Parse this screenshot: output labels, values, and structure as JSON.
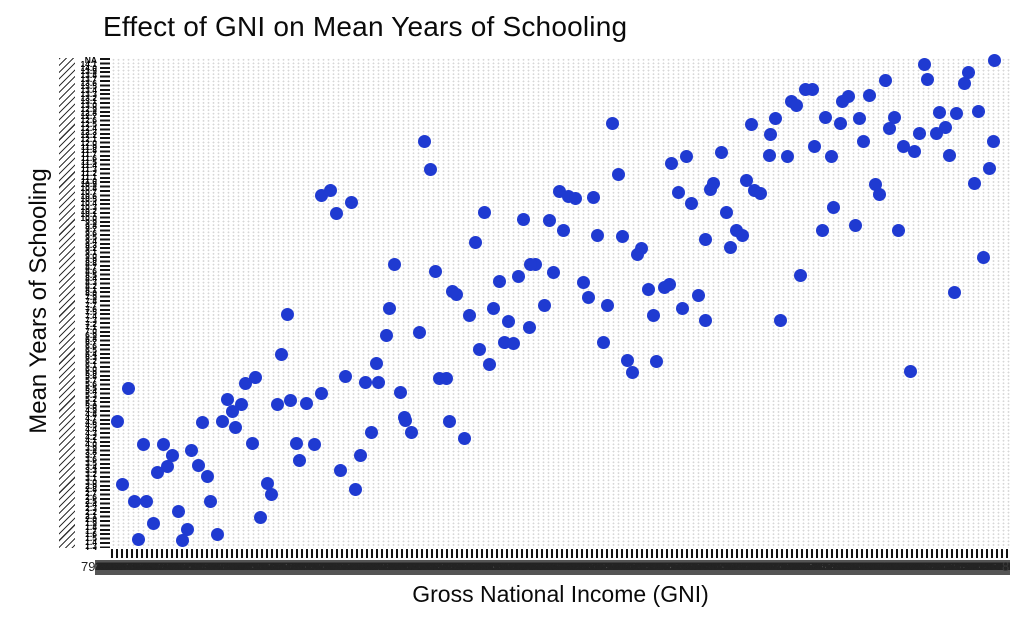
{
  "title": "Effect of GNI on Mean Years of Schooling",
  "x_axis": {
    "label": "Gross National Income (GNI)",
    "left_fragment": "79",
    "right_fragment": "8",
    "overlap_band_spec": {
      "numbers": 260,
      "seed": 7,
      "min": 790,
      "max": 98000
    }
  },
  "y_axis": {
    "label": "Mean Years of Schooling",
    "top_label": "NA",
    "overlap_labels_spec": {
      "first": "NA",
      "from": 14.1,
      "to": 1.2,
      "step": 0.1
    }
  },
  "colors": {
    "marker": "#1f3ad1",
    "grid_dot": "#d7d7d7",
    "tick": "#141414",
    "label_band": "#555555",
    "text": "#0a0a0a"
  },
  "chart_data": {
    "type": "scatter",
    "title": "Effect of GNI on Mean Years of Schooling",
    "xlabel": "Gross National Income (GNI)",
    "ylabel": "Mean Years of Schooling",
    "axes_note": "Both axes are categorical with hundreds of overlapping, illegible tick labels; the only legible y tick label is 'NA' at the top and the x labels start near '79'. Points below are fractions of the plot area (x: 0=left to 1=right, y: 0=bottom to 1=top).",
    "legend": null,
    "grid": "fine dotted",
    "points_frac": [
      [
        0.234,
        0.719
      ],
      [
        0.244,
        0.729
      ],
      [
        0.267,
        0.706
      ],
      [
        0.251,
        0.682
      ],
      [
        0.315,
        0.579
      ],
      [
        0.558,
        0.866
      ],
      [
        0.349,
        0.83
      ],
      [
        0.355,
        0.773
      ],
      [
        0.565,
        0.763
      ],
      [
        0.624,
        0.785
      ],
      [
        0.64,
        0.798
      ],
      [
        0.499,
        0.727
      ],
      [
        0.509,
        0.717
      ],
      [
        0.517,
        0.713
      ],
      [
        0.537,
        0.715
      ],
      [
        0.631,
        0.725
      ],
      [
        0.646,
        0.704
      ],
      [
        0.661,
        0.63
      ],
      [
        0.416,
        0.684
      ],
      [
        0.459,
        0.67
      ],
      [
        0.488,
        0.668
      ],
      [
        0.503,
        0.648
      ],
      [
        0.541,
        0.638
      ],
      [
        0.569,
        0.636
      ],
      [
        0.59,
        0.611
      ],
      [
        0.586,
        0.599
      ],
      [
        0.405,
        0.623
      ],
      [
        0.361,
        0.565
      ],
      [
        0.472,
        0.579
      ],
      [
        0.467,
        0.579
      ],
      [
        0.492,
        0.563
      ],
      [
        0.453,
        0.555
      ],
      [
        0.432,
        0.543
      ],
      [
        0.526,
        0.541
      ],
      [
        0.384,
        0.518
      ],
      [
        0.38,
        0.524
      ],
      [
        0.531,
        0.512
      ],
      [
        0.598,
        0.528
      ],
      [
        0.616,
        0.532
      ],
      [
        0.621,
        0.538
      ],
      [
        0.654,
        0.516
      ],
      [
        0.983,
        0.994
      ],
      [
        0.905,
        0.986
      ],
      [
        0.954,
        0.97
      ],
      [
        0.908,
        0.957
      ],
      [
        0.861,
        0.955
      ],
      [
        0.949,
        0.949
      ],
      [
        0.772,
        0.935
      ],
      [
        0.78,
        0.935
      ],
      [
        0.757,
        0.911
      ],
      [
        0.763,
        0.903
      ],
      [
        0.82,
        0.921
      ],
      [
        0.814,
        0.911
      ],
      [
        0.844,
        0.923
      ],
      [
        0.922,
        0.889
      ],
      [
        0.941,
        0.887
      ],
      [
        0.965,
        0.891
      ],
      [
        0.795,
        0.879
      ],
      [
        0.833,
        0.877
      ],
      [
        0.811,
        0.866
      ],
      [
        0.872,
        0.879
      ],
      [
        0.739,
        0.877
      ],
      [
        0.713,
        0.864
      ],
      [
        0.866,
        0.856
      ],
      [
        0.734,
        0.844
      ],
      [
        0.899,
        0.846
      ],
      [
        0.928,
        0.858
      ],
      [
        0.918,
        0.846
      ],
      [
        0.732,
        0.802
      ],
      [
        0.752,
        0.8
      ],
      [
        0.783,
        0.82
      ],
      [
        0.802,
        0.8
      ],
      [
        0.837,
        0.83
      ],
      [
        0.882,
        0.82
      ],
      [
        0.894,
        0.81
      ],
      [
        0.679,
        0.808
      ],
      [
        0.933,
        0.802
      ],
      [
        0.982,
        0.83
      ],
      [
        0.977,
        0.775
      ],
      [
        0.707,
        0.751
      ],
      [
        0.67,
        0.743
      ],
      [
        0.667,
        0.731
      ],
      [
        0.716,
        0.729
      ],
      [
        0.722,
        0.723
      ],
      [
        0.85,
        0.741
      ],
      [
        0.855,
        0.721
      ],
      [
        0.96,
        0.743
      ],
      [
        0.804,
        0.694
      ],
      [
        0.685,
        0.684
      ],
      [
        0.696,
        0.648
      ],
      [
        0.702,
        0.638
      ],
      [
        0.791,
        0.648
      ],
      [
        0.828,
        0.658
      ],
      [
        0.876,
        0.648
      ],
      [
        0.689,
        0.613
      ],
      [
        0.97,
        0.593
      ],
      [
        0.767,
        0.557
      ],
      [
        0.938,
        0.522
      ],
      [
        0.196,
        0.476
      ],
      [
        0.31,
        0.488
      ],
      [
        0.306,
        0.433
      ],
      [
        0.19,
        0.395
      ],
      [
        0.295,
        0.376
      ],
      [
        0.02,
        0.326
      ],
      [
        0.161,
        0.348
      ],
      [
        0.15,
        0.336
      ],
      [
        0.261,
        0.35
      ],
      [
        0.283,
        0.338
      ],
      [
        0.297,
        0.338
      ],
      [
        0.322,
        0.318
      ],
      [
        0.234,
        0.316
      ],
      [
        0.13,
        0.304
      ],
      [
        0.145,
        0.292
      ],
      [
        0.135,
        0.279
      ],
      [
        0.185,
        0.292
      ],
      [
        0.2,
        0.302
      ],
      [
        0.217,
        0.294
      ],
      [
        0.007,
        0.259
      ],
      [
        0.102,
        0.257
      ],
      [
        0.124,
        0.259
      ],
      [
        0.139,
        0.245
      ],
      [
        0.327,
        0.267
      ],
      [
        0.29,
        0.235
      ],
      [
        0.036,
        0.211
      ],
      [
        0.058,
        0.211
      ],
      [
        0.157,
        0.213
      ],
      [
        0.206,
        0.213
      ],
      [
        0.226,
        0.211
      ],
      [
        0.068,
        0.188
      ],
      [
        0.09,
        0.2
      ],
      [
        0.277,
        0.188
      ],
      [
        0.063,
        0.166
      ],
      [
        0.052,
        0.154
      ],
      [
        0.21,
        0.178
      ],
      [
        0.097,
        0.168
      ],
      [
        0.255,
        0.158
      ],
      [
        0.107,
        0.146
      ],
      [
        0.174,
        0.132
      ],
      [
        0.272,
        0.119
      ],
      [
        0.013,
        0.13
      ],
      [
        0.178,
        0.109
      ],
      [
        0.026,
        0.095
      ],
      [
        0.04,
        0.095
      ],
      [
        0.111,
        0.095
      ],
      [
        0.075,
        0.075
      ],
      [
        0.166,
        0.063
      ],
      [
        0.047,
        0.051
      ],
      [
        0.085,
        0.038
      ],
      [
        0.118,
        0.028
      ],
      [
        0.031,
        0.018
      ],
      [
        0.08,
        0.016
      ],
      [
        0.399,
        0.474
      ],
      [
        0.426,
        0.488
      ],
      [
        0.442,
        0.462
      ],
      [
        0.465,
        0.451
      ],
      [
        0.482,
        0.494
      ],
      [
        0.552,
        0.494
      ],
      [
        0.604,
        0.474
      ],
      [
        0.636,
        0.488
      ],
      [
        0.661,
        0.464
      ],
      [
        0.343,
        0.439
      ],
      [
        0.548,
        0.419
      ],
      [
        0.438,
        0.419
      ],
      [
        0.448,
        0.417
      ],
      [
        0.41,
        0.405
      ],
      [
        0.575,
        0.383
      ],
      [
        0.607,
        0.381
      ],
      [
        0.58,
        0.358
      ],
      [
        0.421,
        0.374
      ],
      [
        0.365,
        0.346
      ],
      [
        0.373,
        0.346
      ],
      [
        0.377,
        0.259
      ],
      [
        0.328,
        0.261
      ],
      [
        0.334,
        0.235
      ],
      [
        0.393,
        0.223
      ],
      [
        0.745,
        0.464
      ],
      [
        0.889,
        0.36
      ]
    ]
  }
}
